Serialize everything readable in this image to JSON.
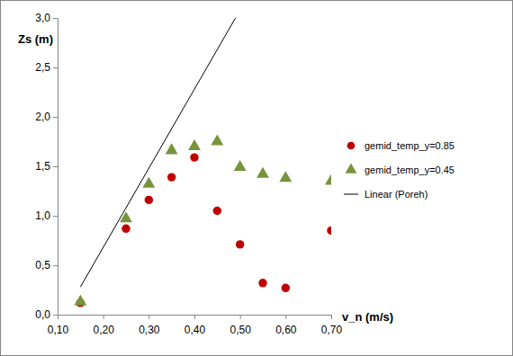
{
  "chart_data": {
    "type": "scatter",
    "x_label": "v_n (m/s)",
    "y_label": "Zs (m)",
    "xlim": [
      0.1,
      0.7
    ],
    "ylim": [
      0.0,
      3.0
    ],
    "xticks": [
      {
        "value": 0.1,
        "label": "0,10"
      },
      {
        "value": 0.2,
        "label": "0,20"
      },
      {
        "value": 0.3,
        "label": "0,30"
      },
      {
        "value": 0.4,
        "label": "0,40"
      },
      {
        "value": 0.5,
        "label": "0,50"
      },
      {
        "value": 0.6,
        "label": "0,60"
      },
      {
        "value": 0.7,
        "label": "0,70"
      }
    ],
    "yticks": [
      {
        "value": 0.0,
        "label": "0,0"
      },
      {
        "value": 0.5,
        "label": "0,5"
      },
      {
        "value": 1.0,
        "label": "1,0"
      },
      {
        "value": 1.5,
        "label": "1,5"
      },
      {
        "value": 2.0,
        "label": "2,0"
      },
      {
        "value": 2.5,
        "label": "2,5"
      },
      {
        "value": 3.0,
        "label": "3,0"
      }
    ],
    "grid": false,
    "legend": "right",
    "series": [
      {
        "name": "gemid_temp_y=0.85",
        "type": "scatter",
        "marker": "circle",
        "color": "#c00000",
        "x": [
          0.15,
          0.25,
          0.3,
          0.35,
          0.4,
          0.45,
          0.5,
          0.55,
          0.6,
          0.7
        ],
        "values": [
          0.12,
          0.87,
          1.16,
          1.39,
          1.59,
          1.05,
          0.71,
          0.32,
          0.27,
          0.85
        ]
      },
      {
        "name": "gemid_temp_y=0.45",
        "type": "scatter",
        "marker": "triangle",
        "color": "#77933c",
        "x": [
          0.15,
          0.25,
          0.3,
          0.35,
          0.4,
          0.45,
          0.5,
          0.55,
          0.6,
          0.7
        ],
        "values": [
          0.13,
          0.97,
          1.32,
          1.66,
          1.7,
          1.75,
          1.49,
          1.42,
          1.38,
          1.35
        ]
      },
      {
        "name": "Linear (Poreh)",
        "type": "line",
        "line_style": "solid",
        "color": "#000000",
        "x": [
          0.15,
          0.49
        ],
        "values": [
          0.28,
          3.0
        ]
      }
    ]
  }
}
